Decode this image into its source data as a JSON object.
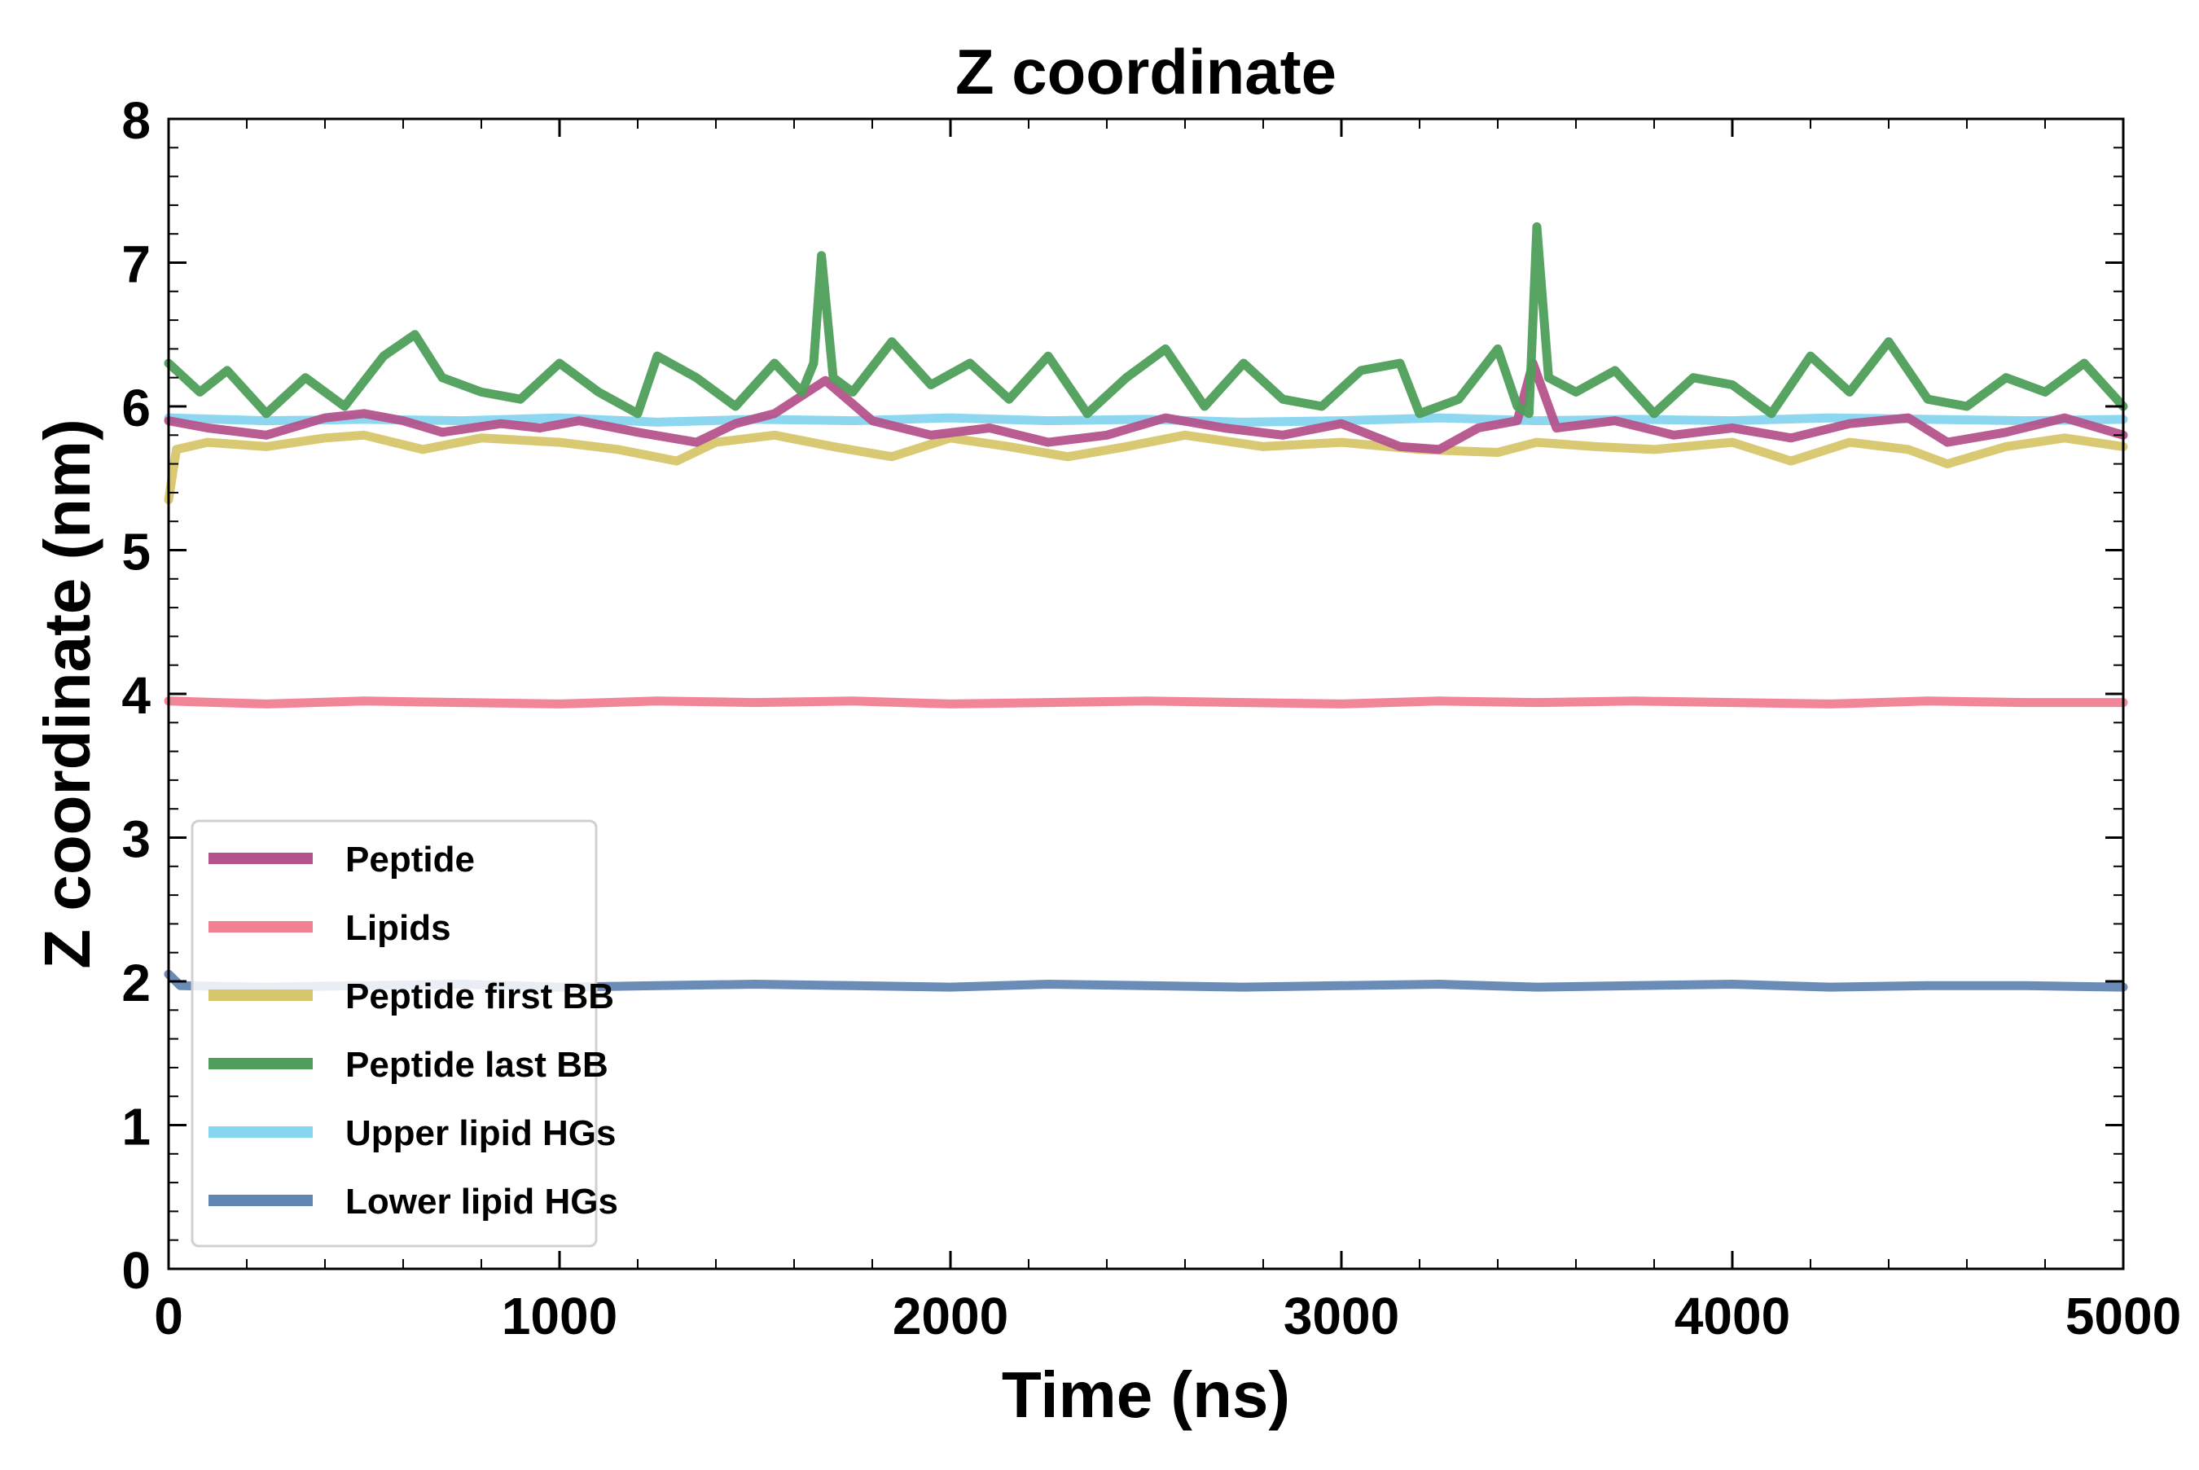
{
  "chart_data": {
    "type": "line",
    "title": "Z coordinate",
    "xlabel": "Time (ns)",
    "ylabel": "Z coordinate (nm)",
    "xlim": [
      0,
      5000
    ],
    "ylim": [
      0,
      8
    ],
    "xticks": [
      0,
      1000,
      2000,
      3000,
      4000,
      5000
    ],
    "yticks": [
      0,
      1,
      2,
      3,
      4,
      5,
      6,
      7,
      8
    ],
    "grid": false,
    "legend_position": "lower-left",
    "series": [
      {
        "name": "Upper lipid HGs",
        "color": "#87d6ef",
        "x": [
          0,
          250,
          500,
          750,
          1000,
          1250,
          1500,
          1750,
          2000,
          2250,
          2500,
          2750,
          3000,
          3250,
          3500,
          3750,
          4000,
          4250,
          4500,
          4750,
          5000
        ],
        "y": [
          5.92,
          5.9,
          5.91,
          5.9,
          5.92,
          5.89,
          5.91,
          5.9,
          5.92,
          5.9,
          5.91,
          5.89,
          5.9,
          5.92,
          5.9,
          5.91,
          5.9,
          5.92,
          5.91,
          5.9,
          5.91
        ]
      },
      {
        "name": "Peptide first BB",
        "color": "#d8c66c",
        "x": [
          0,
          20,
          100,
          250,
          400,
          500,
          650,
          800,
          1000,
          1150,
          1300,
          1400,
          1550,
          1700,
          1850,
          2000,
          2150,
          2300,
          2450,
          2600,
          2800,
          3000,
          3200,
          3400,
          3500,
          3650,
          3800,
          4000,
          4150,
          4300,
          4450,
          4550,
          4700,
          4850,
          5000
        ],
        "y": [
          5.35,
          5.7,
          5.75,
          5.72,
          5.78,
          5.8,
          5.7,
          5.78,
          5.75,
          5.7,
          5.62,
          5.75,
          5.8,
          5.72,
          5.65,
          5.78,
          5.72,
          5.65,
          5.72,
          5.8,
          5.72,
          5.75,
          5.7,
          5.68,
          5.75,
          5.72,
          5.7,
          5.75,
          5.62,
          5.75,
          5.7,
          5.6,
          5.72,
          5.78,
          5.72
        ]
      },
      {
        "name": "Peptide",
        "color": "#b4538c",
        "x": [
          0,
          100,
          250,
          400,
          500,
          600,
          700,
          850,
          950,
          1050,
          1200,
          1350,
          1450,
          1550,
          1680,
          1800,
          1950,
          2100,
          2250,
          2400,
          2550,
          2700,
          2850,
          3000,
          3150,
          3250,
          3350,
          3450,
          3490,
          3550,
          3700,
          3850,
          4000,
          4150,
          4300,
          4450,
          4550,
          4700,
          4850,
          5000
        ],
        "y": [
          5.9,
          5.85,
          5.8,
          5.92,
          5.95,
          5.9,
          5.82,
          5.88,
          5.85,
          5.9,
          5.82,
          5.75,
          5.88,
          5.95,
          6.18,
          5.9,
          5.8,
          5.85,
          5.75,
          5.8,
          5.92,
          5.85,
          5.8,
          5.88,
          5.72,
          5.7,
          5.85,
          5.9,
          6.3,
          5.85,
          5.9,
          5.8,
          5.85,
          5.78,
          5.88,
          5.92,
          5.75,
          5.82,
          5.92,
          5.8
        ]
      },
      {
        "name": "Peptide last BB",
        "color": "#4e9f5a",
        "x": [
          0,
          80,
          150,
          250,
          350,
          450,
          550,
          630,
          700,
          800,
          900,
          1000,
          1100,
          1200,
          1250,
          1350,
          1450,
          1550,
          1620,
          1650,
          1670,
          1700,
          1750,
          1850,
          1950,
          2050,
          2150,
          2250,
          2350,
          2450,
          2550,
          2650,
          2750,
          2850,
          2950,
          3050,
          3150,
          3200,
          3300,
          3400,
          3450,
          3480,
          3500,
          3530,
          3600,
          3700,
          3800,
          3900,
          4000,
          4100,
          4200,
          4300,
          4400,
          4500,
          4600,
          4700,
          4800,
          4900,
          5000
        ],
        "y": [
          6.3,
          6.1,
          6.25,
          5.95,
          6.2,
          6.0,
          6.35,
          6.5,
          6.2,
          6.1,
          6.05,
          6.3,
          6.1,
          5.95,
          6.35,
          6.2,
          6.0,
          6.3,
          6.1,
          6.3,
          7.05,
          6.2,
          6.1,
          6.45,
          6.15,
          6.3,
          6.05,
          6.35,
          5.95,
          6.2,
          6.4,
          6.0,
          6.3,
          6.05,
          6.0,
          6.25,
          6.3,
          5.95,
          6.05,
          6.4,
          6.0,
          5.95,
          7.25,
          6.2,
          6.1,
          6.25,
          5.95,
          6.2,
          6.15,
          5.95,
          6.35,
          6.1,
          6.45,
          6.05,
          6.0,
          6.2,
          6.1,
          6.3,
          6.0
        ]
      },
      {
        "name": "Lipids",
        "color": "#f08092",
        "x": [
          0,
          250,
          500,
          750,
          1000,
          1250,
          1500,
          1750,
          2000,
          2250,
          2500,
          2750,
          3000,
          3250,
          3500,
          3750,
          4000,
          4250,
          4500,
          4750,
          5000
        ],
        "y": [
          3.95,
          3.93,
          3.95,
          3.94,
          3.93,
          3.95,
          3.94,
          3.95,
          3.93,
          3.94,
          3.95,
          3.94,
          3.93,
          3.95,
          3.94,
          3.95,
          3.94,
          3.93,
          3.95,
          3.94,
          3.94
        ]
      },
      {
        "name": "Lower lipid HGs",
        "color": "#6286b3",
        "x": [
          0,
          30,
          250,
          500,
          750,
          1000,
          1250,
          1500,
          1750,
          2000,
          2250,
          2500,
          2750,
          3000,
          3250,
          3500,
          3750,
          4000,
          4250,
          4500,
          4750,
          5000
        ],
        "y": [
          2.05,
          1.97,
          1.96,
          1.97,
          1.98,
          1.96,
          1.97,
          1.98,
          1.97,
          1.96,
          1.98,
          1.97,
          1.96,
          1.97,
          1.98,
          1.96,
          1.97,
          1.98,
          1.96,
          1.97,
          1.97,
          1.96
        ]
      }
    ],
    "legend": [
      {
        "name": "Peptide",
        "color": "#b4538c"
      },
      {
        "name": "Lipids",
        "color": "#f08092"
      },
      {
        "name": "Peptide first BB",
        "color": "#d8c66c"
      },
      {
        "name": "Peptide last BB",
        "color": "#4e9f5a"
      },
      {
        "name": "Upper lipid HGs",
        "color": "#87d6ef"
      },
      {
        "name": "Lower lipid HGs",
        "color": "#6286b3"
      }
    ]
  }
}
